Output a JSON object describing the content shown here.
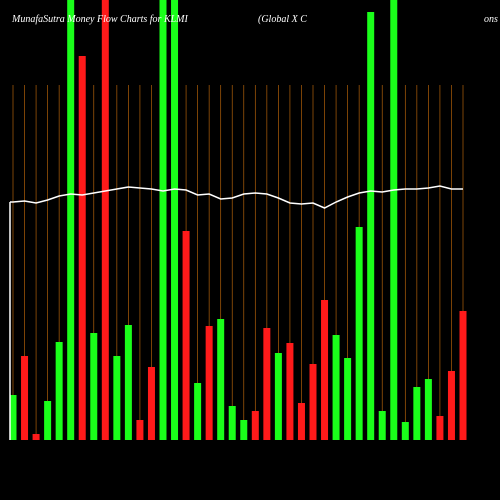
{
  "chart_data": {
    "type": "bar",
    "title": "MunafaSutra Money Flow Charts for KLMI",
    "subtitle": "(Global X C",
    "corner_text": "ons",
    "ylim": [
      0,
      440
    ],
    "series": [
      {
        "name": "Money Flow",
        "colors": [
          "#1aff1a",
          "#ff1a1a",
          "#ff1a1a",
          "#1aff1a",
          "#1aff1a",
          "#1aff1a",
          "#ff1a1a",
          "#1aff1a",
          "#ff1a1a",
          "#1aff1a",
          "#1aff1a",
          "#ff1a1a",
          "#ff1a1a",
          "#1aff1a",
          "#1aff1a",
          "#ff1a1a",
          "#1aff1a",
          "#ff1a1a",
          "#1aff1a",
          "#1aff1a",
          "#1aff1a",
          "#ff1a1a",
          "#ff1a1a",
          "#1aff1a",
          "#ff1a1a",
          "#ff1a1a",
          "#ff1a1a",
          "#ff1a1a",
          "#1aff1a",
          "#1aff1a",
          "#1aff1a",
          "#1aff1a",
          "#1aff1a",
          "#1aff1a",
          "#1aff1a",
          "#1aff1a",
          "#1aff1a",
          "#ff1a1a",
          "#ff1a1a",
          "#ff1a1a"
        ],
        "values": [
          45,
          84,
          6,
          39,
          98,
          440,
          384,
          107,
          440,
          84,
          115,
          20,
          73,
          440,
          440,
          209,
          57,
          114,
          121,
          34,
          20,
          29,
          112,
          87,
          97,
          37,
          76,
          140,
          105,
          82,
          213,
          428,
          29,
          440,
          18,
          53,
          61,
          24,
          69,
          129
        ]
      },
      {
        "name": "Price",
        "color": "#ffffff",
        "values": [
          238,
          239,
          237,
          240,
          244,
          246,
          245,
          247,
          249,
          251,
          253,
          252,
          251,
          249,
          251,
          250,
          245,
          246,
          241,
          242,
          246,
          247,
          246,
          242,
          237,
          236,
          237,
          232,
          238,
          243,
          247,
          249,
          248,
          250,
          251,
          251,
          252,
          254,
          251,
          251
        ]
      }
    ]
  }
}
